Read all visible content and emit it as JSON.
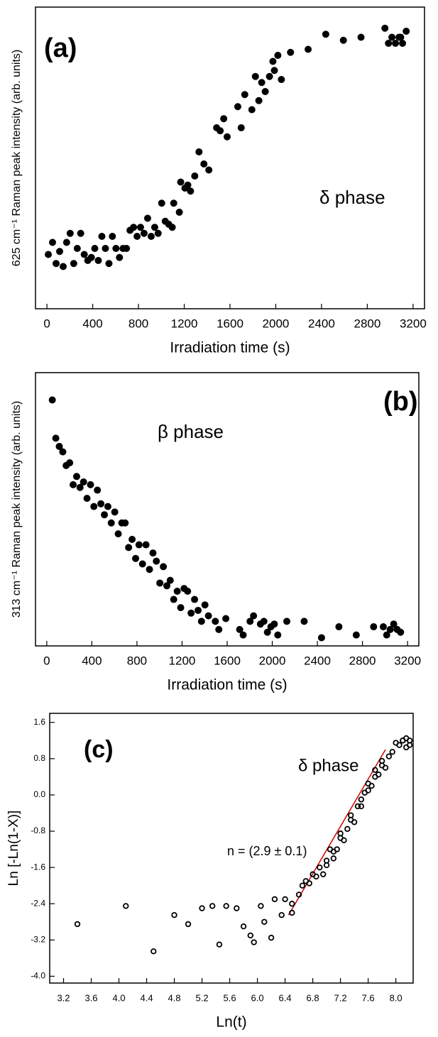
{
  "chart_data": [
    {
      "type": "scatter",
      "annotations": [
        "(a)",
        "δ phase"
      ],
      "xlabel": "Irradiation time (s)",
      "ylabel": "625 cm⁻¹ Raman peak intensity (arb. units)",
      "xlim": [
        -100,
        3300
      ],
      "xticks": [
        0,
        400,
        800,
        1200,
        1600,
        2000,
        2400,
        2800,
        3200
      ],
      "ylim": [
        0,
        1
      ],
      "color": "#000000",
      "marker": "filled",
      "x": [
        12,
        49,
        80,
        111,
        142,
        172,
        203,
        234,
        265,
        295,
        326,
        357,
        388,
        418,
        449,
        480,
        511,
        542,
        572,
        603,
        634,
        665,
        695,
        726,
        757,
        788,
        818,
        849,
        880,
        911,
        942,
        972,
        1003,
        1034,
        1065,
        1095,
        1108,
        1157,
        1169,
        1206,
        1231,
        1255,
        1292,
        1329,
        1372,
        1415,
        1483,
        1514,
        1545,
        1575,
        1668,
        1698,
        1729,
        1791,
        1822,
        1852,
        1877,
        1908,
        1945,
        1975,
        1988,
        2018,
        2049,
        2129,
        2283,
        2437,
        2591,
        2745,
        2954,
        2985,
        3015,
        3046,
        3077,
        3092,
        3108,
        3140
      ],
      "values": [
        0.18,
        0.22,
        0.15,
        0.19,
        0.14,
        0.22,
        0.25,
        0.15,
        0.2,
        0.25,
        0.18,
        0.16,
        0.17,
        0.2,
        0.16,
        0.24,
        0.2,
        0.15,
        0.24,
        0.2,
        0.17,
        0.2,
        0.2,
        0.26,
        0.27,
        0.24,
        0.27,
        0.25,
        0.3,
        0.24,
        0.27,
        0.25,
        0.35,
        0.29,
        0.28,
        0.27,
        0.35,
        0.32,
        0.42,
        0.4,
        0.41,
        0.39,
        0.44,
        0.52,
        0.48,
        0.46,
        0.6,
        0.59,
        0.63,
        0.57,
        0.67,
        0.6,
        0.71,
        0.66,
        0.77,
        0.69,
        0.75,
        0.72,
        0.77,
        0.82,
        0.79,
        0.84,
        0.76,
        0.85,
        0.86,
        0.91,
        0.89,
        0.9,
        0.93,
        0.88,
        0.9,
        0.88,
        0.9,
        0.9,
        0.88,
        0.92
      ]
    },
    {
      "type": "scatter",
      "annotations": [
        "(b)",
        "β phase"
      ],
      "xlabel": "Irradiation time (s)",
      "ylabel": "313 cm⁻¹ Raman peak intensity (arb. units)",
      "xlim": [
        -100,
        3300
      ],
      "xticks": [
        0,
        400,
        800,
        1200,
        1600,
        2000,
        2400,
        2800,
        3200
      ],
      "ylim": [
        0,
        1
      ],
      "color": "#000000",
      "marker": "filled",
      "x": [
        49,
        80,
        111,
        142,
        172,
        203,
        234,
        265,
        295,
        326,
        357,
        388,
        418,
        449,
        480,
        511,
        542,
        572,
        603,
        634,
        665,
        695,
        726,
        757,
        788,
        818,
        849,
        880,
        911,
        942,
        972,
        1003,
        1034,
        1065,
        1095,
        1126,
        1157,
        1188,
        1218,
        1249,
        1280,
        1311,
        1342,
        1372,
        1403,
        1434,
        1495,
        1526,
        1588,
        1711,
        1742,
        1803,
        1834,
        1895,
        1926,
        1957,
        1988,
        2018,
        2049,
        2129,
        2283,
        2437,
        2591,
        2745,
        2899,
        2985,
        3015,
        3046,
        3077,
        3108,
        3138
      ],
      "values": [
        0.9,
        0.76,
        0.73,
        0.71,
        0.66,
        0.67,
        0.59,
        0.62,
        0.58,
        0.6,
        0.54,
        0.59,
        0.51,
        0.57,
        0.52,
        0.48,
        0.51,
        0.45,
        0.49,
        0.41,
        0.45,
        0.45,
        0.36,
        0.39,
        0.32,
        0.37,
        0.3,
        0.37,
        0.28,
        0.34,
        0.31,
        0.23,
        0.29,
        0.22,
        0.24,
        0.17,
        0.2,
        0.14,
        0.21,
        0.2,
        0.12,
        0.17,
        0.13,
        0.09,
        0.15,
        0.11,
        0.09,
        0.06,
        0.1,
        0.06,
        0.04,
        0.09,
        0.11,
        0.08,
        0.09,
        0.05,
        0.07,
        0.08,
        0.04,
        0.09,
        0.09,
        0.03,
        0.07,
        0.04,
        0.07,
        0.07,
        0.04,
        0.06,
        0.08,
        0.06,
        0.05
      ]
    },
    {
      "type": "scatter",
      "annotations": [
        "(c)",
        "δ phase",
        "n = (2.9 ± 0.1)"
      ],
      "xlabel": "Ln(t)",
      "ylabel": "Ln [-Ln(1-X)]",
      "xlim": [
        3.0,
        8.25
      ],
      "xticks": [
        3.2,
        3.6,
        {
          "value": 4.0,
          "label": "4.0"
        },
        4.4,
        4.8,
        5.2,
        5.6,
        {
          "value": 6.0,
          "label": "6.0"
        },
        6.4,
        6.8,
        7.2,
        7.6,
        {
          "value": 8.0,
          "label": "8.0"
        }
      ],
      "ylim": [
        -4.15,
        1.8
      ],
      "yticks": [
        1.6,
        0.8,
        {
          "value": 0,
          "label": "0.0"
        },
        -0.8,
        -1.6,
        -2.4,
        -3.2,
        {
          "value": -4.0,
          "label": "-4.0"
        }
      ],
      "color": "#000000",
      "marker": "open",
      "x": [
        3.4,
        4.1,
        4.5,
        4.8,
        5.0,
        5.2,
        5.35,
        5.45,
        5.55,
        5.7,
        5.8,
        5.9,
        5.95,
        6.05,
        6.1,
        6.2,
        6.25,
        6.35,
        6.4,
        6.5,
        6.5,
        6.6,
        6.65,
        6.7,
        6.75,
        6.8,
        6.85,
        6.9,
        6.95,
        7.0,
        7.0,
        7.05,
        7.1,
        7.1,
        7.15,
        7.2,
        7.2,
        7.25,
        7.3,
        7.35,
        7.35,
        7.4,
        7.45,
        7.5,
        7.5,
        7.55,
        7.6,
        7.6,
        7.65,
        7.7,
        7.7,
        7.75,
        7.8,
        7.8,
        7.85,
        7.9,
        7.95,
        8.0,
        8.05,
        8.1,
        8.1,
        8.15,
        8.15,
        8.2,
        8.2
      ],
      "values": [
        -2.85,
        -2.45,
        -3.45,
        -2.65,
        -2.85,
        -2.5,
        -2.45,
        -3.3,
        -2.45,
        -2.5,
        -2.9,
        -3.1,
        -3.25,
        -2.45,
        -2.8,
        -3.15,
        -2.3,
        -2.65,
        -2.3,
        -2.4,
        -2.6,
        -2.2,
        -2.0,
        -1.9,
        -1.95,
        -1.75,
        -1.8,
        -1.6,
        -1.75,
        -1.45,
        -1.55,
        -1.2,
        -1.4,
        -1.25,
        -1.2,
        -0.95,
        -0.85,
        -1.0,
        -0.75,
        -0.55,
        -0.45,
        -0.6,
        -0.25,
        -0.25,
        -0.1,
        0.05,
        0.1,
        0.25,
        0.2,
        0.4,
        0.55,
        0.45,
        0.65,
        0.75,
        0.6,
        0.85,
        0.95,
        1.15,
        1.1,
        1.2,
        1.2,
        1.05,
        1.25,
        1.1,
        1.2
      ],
      "fit": {
        "x": [
          6.45,
          7.85
        ],
        "values": [
          -2.65,
          1.0
        ],
        "color": "#d00000"
      }
    }
  ]
}
